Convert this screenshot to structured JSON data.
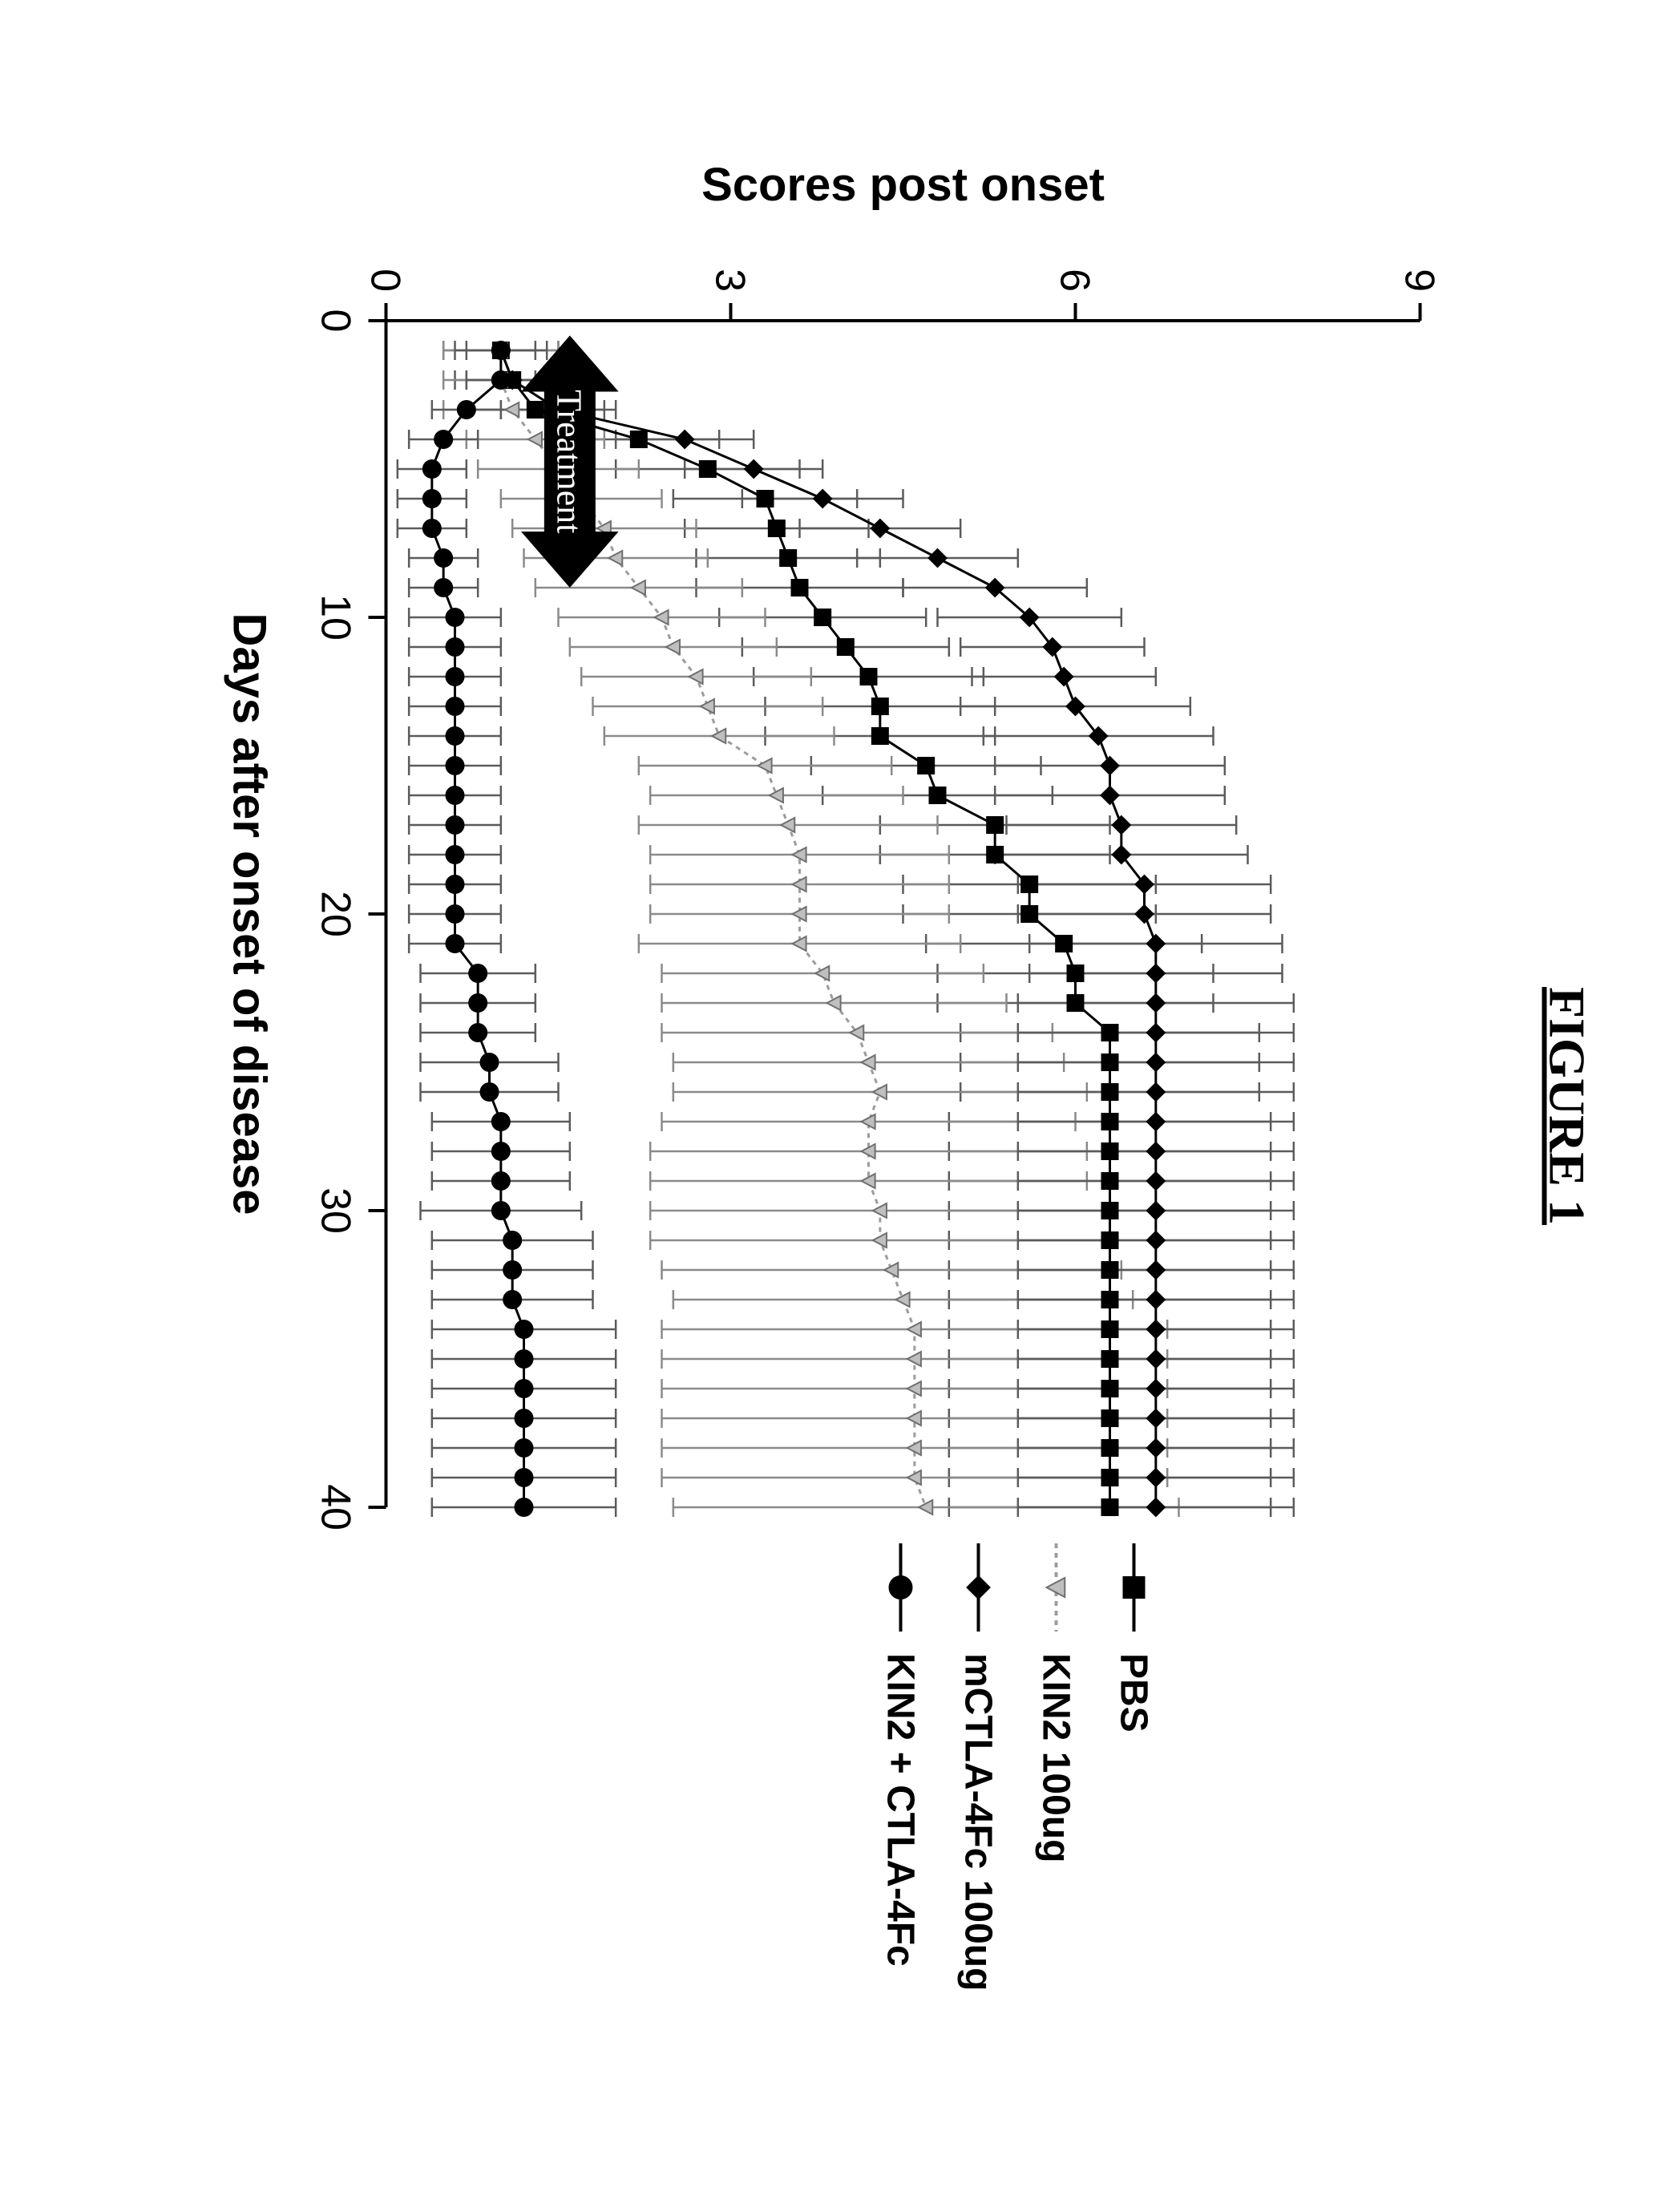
{
  "title": "FIGURE 1",
  "title_fontsize": 64,
  "chart": {
    "type": "line-errorbar",
    "background_color": "#ffffff",
    "axis_color": "#000000",
    "axis_line_width": 4,
    "tick_length": 22,
    "tick_fontsize": 52,
    "axis_label_fontsize": 58,
    "axis_label_weight": 700,
    "xlabel": "Days after onset of disease",
    "ylabel": "Scores post onset",
    "xlim": [
      0,
      40
    ],
    "ylim": [
      0,
      9
    ],
    "xticks": [
      0,
      10,
      20,
      30,
      40
    ],
    "yticks": [
      0,
      3,
      6,
      9
    ],
    "errorbar_cap_width": 12,
    "errorbar_line_width": 2.5,
    "marker_stroke_width": 2,
    "line_width": 3,
    "annotation": {
      "text": "Treatment",
      "text_color": "#ffffff",
      "font_size": 44,
      "x_start": 0.5,
      "x_end": 9,
      "y": 1.6,
      "arrow_color": "#000000",
      "shaft_height": 64
    },
    "series": [
      {
        "id": "pbs",
        "label": "PBS",
        "marker": "square",
        "marker_size": 20,
        "line_color": "#000000",
        "marker_fill": "#000000",
        "marker_stroke": "#000000",
        "errorbar_color": "#5b5b5b",
        "x": [
          1,
          2,
          3,
          4,
          5,
          6,
          7,
          8,
          9,
          10,
          11,
          12,
          13,
          14,
          15,
          16,
          17,
          18,
          19,
          20,
          21,
          22,
          23,
          24,
          25,
          26,
          27,
          28,
          29,
          30,
          31,
          32,
          33,
          34,
          35,
          36,
          37,
          38,
          39,
          40
        ],
        "y": [
          1.0,
          1.1,
          1.3,
          2.2,
          2.8,
          3.3,
          3.4,
          3.5,
          3.6,
          3.8,
          4.0,
          4.2,
          4.3,
          4.3,
          4.7,
          4.8,
          5.3,
          5.3,
          5.6,
          5.6,
          5.9,
          6.0,
          6.0,
          6.3,
          6.3,
          6.3,
          6.3,
          6.3,
          6.3,
          6.3,
          6.3,
          6.3,
          6.3,
          6.3,
          6.3,
          6.3,
          6.3,
          6.3,
          6.3,
          6.3
        ],
        "err": [
          0.5,
          0.5,
          0.6,
          0.7,
          0.8,
          0.8,
          0.8,
          0.8,
          0.9,
          0.9,
          0.9,
          1.0,
          1.0,
          1.0,
          1.0,
          1.0,
          1.0,
          1.0,
          1.1,
          1.1,
          1.2,
          1.2,
          1.2,
          1.3,
          1.3,
          1.3,
          1.4,
          1.4,
          1.4,
          1.4,
          1.4,
          1.4,
          1.4,
          1.4,
          1.4,
          1.4,
          1.4,
          1.4,
          1.4,
          1.4
        ]
      },
      {
        "id": "kin2",
        "label": "KIN2 100ug",
        "marker": "triangle",
        "marker_size": 18,
        "line_color": "#9c9c9c",
        "line_dash": "6,6",
        "marker_fill": "#bfbfbf",
        "marker_stroke": "#6f6f6f",
        "errorbar_color": "#8a8a8a",
        "x": [
          1,
          2,
          3,
          4,
          5,
          6,
          7,
          8,
          9,
          10,
          11,
          12,
          13,
          14,
          15,
          16,
          17,
          18,
          19,
          20,
          21,
          22,
          23,
          24,
          25,
          26,
          27,
          28,
          29,
          30,
          31,
          32,
          33,
          34,
          35,
          36,
          37,
          38,
          39,
          40
        ],
        "y": [
          1.0,
          1.0,
          1.1,
          1.3,
          1.5,
          1.7,
          1.9,
          2.0,
          2.2,
          2.4,
          2.5,
          2.7,
          2.8,
          2.9,
          3.3,
          3.4,
          3.5,
          3.6,
          3.6,
          3.6,
          3.6,
          3.8,
          3.9,
          4.1,
          4.2,
          4.3,
          4.2,
          4.2,
          4.2,
          4.3,
          4.3,
          4.4,
          4.5,
          4.6,
          4.6,
          4.6,
          4.6,
          4.6,
          4.6,
          4.7
        ],
        "err": [
          0.5,
          0.5,
          0.6,
          0.6,
          0.7,
          0.7,
          0.8,
          0.8,
          0.9,
          0.9,
          0.9,
          1.0,
          1.0,
          1.0,
          1.1,
          1.1,
          1.3,
          1.3,
          1.3,
          1.3,
          1.4,
          1.4,
          1.5,
          1.7,
          1.7,
          1.8,
          1.8,
          1.9,
          1.9,
          2.0,
          2.0,
          2.0,
          2.0,
          2.2,
          2.2,
          2.2,
          2.2,
          2.2,
          2.2,
          2.2
        ]
      },
      {
        "id": "ctla",
        "label": "mCTLA-4Fc 100ug",
        "marker": "diamond",
        "marker_size": 22,
        "line_color": "#000000",
        "marker_fill": "#000000",
        "marker_stroke": "#000000",
        "errorbar_color": "#5b5b5b",
        "x": [
          1,
          2,
          3,
          4,
          5,
          6,
          7,
          8,
          9,
          10,
          11,
          12,
          13,
          14,
          15,
          16,
          17,
          18,
          19,
          20,
          21,
          22,
          23,
          24,
          25,
          26,
          27,
          28,
          29,
          30,
          31,
          32,
          33,
          34,
          35,
          36,
          37,
          38,
          39,
          40
        ],
        "y": [
          1.0,
          1.1,
          1.5,
          2.6,
          3.2,
          3.8,
          4.3,
          4.8,
          5.3,
          5.6,
          5.8,
          5.9,
          6.0,
          6.2,
          6.3,
          6.3,
          6.4,
          6.4,
          6.6,
          6.6,
          6.7,
          6.7,
          6.7,
          6.7,
          6.7,
          6.7,
          6.7,
          6.7,
          6.7,
          6.7,
          6.7,
          6.7,
          6.7,
          6.7,
          6.7,
          6.7,
          6.7,
          6.7,
          6.7,
          6.7
        ],
        "err": [
          0.4,
          0.4,
          0.5,
          0.6,
          0.6,
          0.7,
          0.7,
          0.7,
          0.8,
          0.8,
          0.8,
          0.8,
          1.0,
          1.0,
          1.0,
          1.0,
          1.0,
          1.1,
          1.1,
          1.1,
          1.1,
          1.1,
          1.2,
          1.2,
          1.2,
          1.2,
          1.2,
          1.2,
          1.2,
          1.2,
          1.2,
          1.2,
          1.2,
          1.2,
          1.2,
          1.2,
          1.2,
          1.2,
          1.2,
          1.2
        ]
      },
      {
        "id": "combo",
        "label": "KIN2 + CTLA-4Fc",
        "marker": "circle",
        "marker_size": 22,
        "line_color": "#000000",
        "marker_fill": "#000000",
        "marker_stroke": "#000000",
        "errorbar_color": "#5b5b5b",
        "x": [
          1,
          2,
          3,
          4,
          5,
          6,
          7,
          8,
          9,
          10,
          11,
          12,
          13,
          14,
          15,
          16,
          17,
          18,
          19,
          20,
          21,
          22,
          23,
          24,
          25,
          26,
          27,
          28,
          29,
          30,
          31,
          32,
          33,
          34,
          35,
          36,
          37,
          38,
          39,
          40
        ],
        "y": [
          1.0,
          1.0,
          0.7,
          0.5,
          0.4,
          0.4,
          0.4,
          0.5,
          0.5,
          0.6,
          0.6,
          0.6,
          0.6,
          0.6,
          0.6,
          0.6,
          0.6,
          0.6,
          0.6,
          0.6,
          0.6,
          0.8,
          0.8,
          0.8,
          0.9,
          0.9,
          1.0,
          1.0,
          1.0,
          1.0,
          1.1,
          1.1,
          1.1,
          1.2,
          1.2,
          1.2,
          1.2,
          1.2,
          1.2,
          1.2
        ],
        "err": [
          0.3,
          0.3,
          0.3,
          0.3,
          0.3,
          0.3,
          0.3,
          0.3,
          0.3,
          0.4,
          0.4,
          0.4,
          0.4,
          0.4,
          0.4,
          0.4,
          0.4,
          0.4,
          0.4,
          0.4,
          0.4,
          0.5,
          0.5,
          0.5,
          0.6,
          0.6,
          0.6,
          0.6,
          0.6,
          0.7,
          0.7,
          0.7,
          0.7,
          0.8,
          0.8,
          0.8,
          0.8,
          0.8,
          0.8,
          0.8
        ]
      }
    ]
  },
  "legend": {
    "fontsize": 48,
    "items": [
      {
        "ref": "pbs",
        "label": "PBS"
      },
      {
        "ref": "kin2",
        "label": "KIN2 100ug"
      },
      {
        "ref": "ctla",
        "label": "mCTLA-4Fc 100ug"
      },
      {
        "ref": "combo",
        "label": "KIN2 + CTLA-4Fc"
      }
    ]
  }
}
